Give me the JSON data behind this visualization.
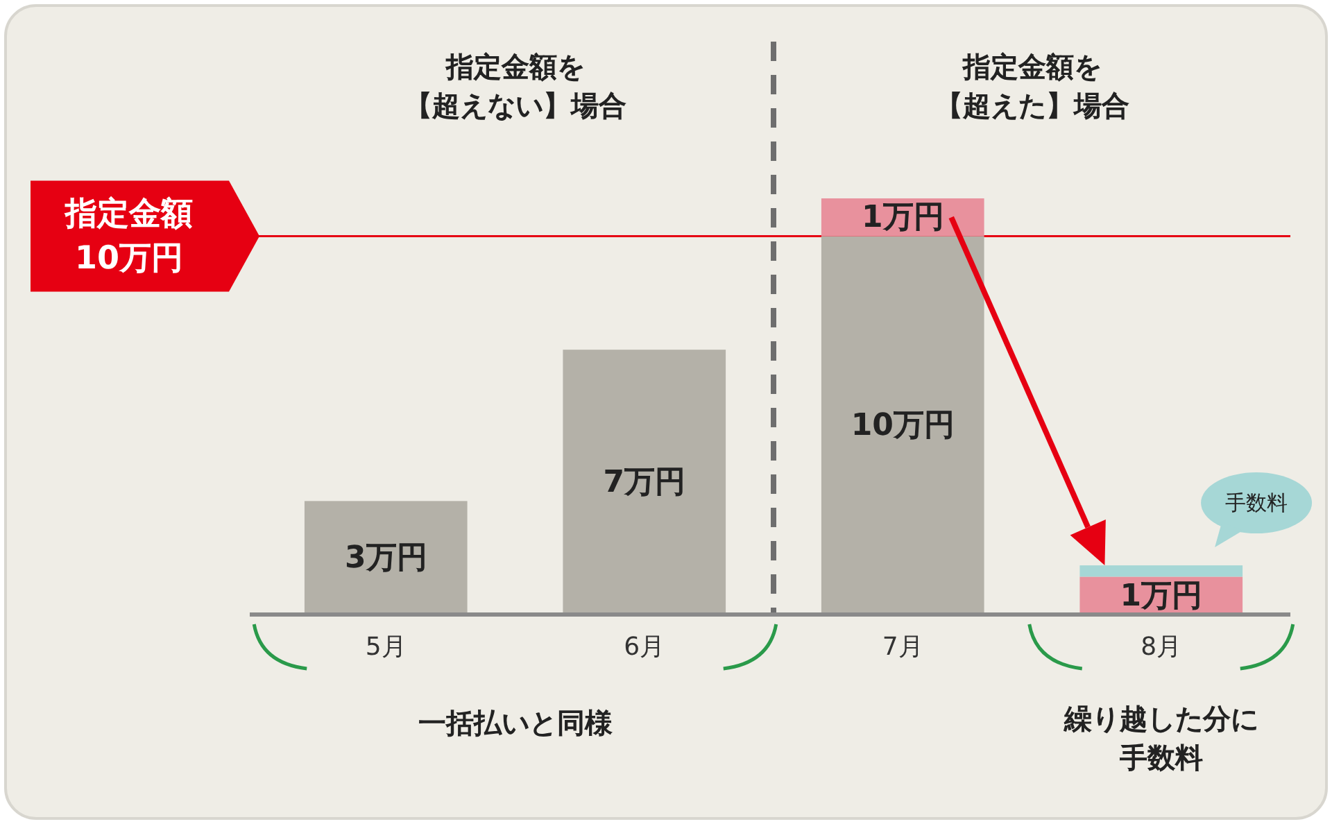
{
  "chart_data": {
    "type": "bar",
    "stacked": true,
    "categories": [
      "5月",
      "6月",
      "7月",
      "8月"
    ],
    "series": [
      {
        "color": "#b4b1a8",
        "values": [
          3,
          7,
          10,
          null
        ],
        "value_labels": [
          "3万円",
          "7万円",
          "10万円",
          null
        ]
      },
      {
        "color": "#e8919d",
        "values": [
          null,
          null,
          1,
          1
        ],
        "value_labels": [
          null,
          null,
          "1万円",
          "1万円"
        ]
      },
      {
        "name": "手数料",
        "color": "#a6d7d6",
        "values": [
          null,
          null,
          null,
          0.3
        ]
      }
    ],
    "ref_lines": [
      {
        "axis": "y",
        "value": 10,
        "label": "指定金額\n10万円",
        "color": "#e60012"
      }
    ],
    "annotations": [
      "指定金額を【超えない】場合",
      "指定金額を【超えた】場合",
      "一括払いと同様",
      "繰り越した分に手数料"
    ]
  }
}
